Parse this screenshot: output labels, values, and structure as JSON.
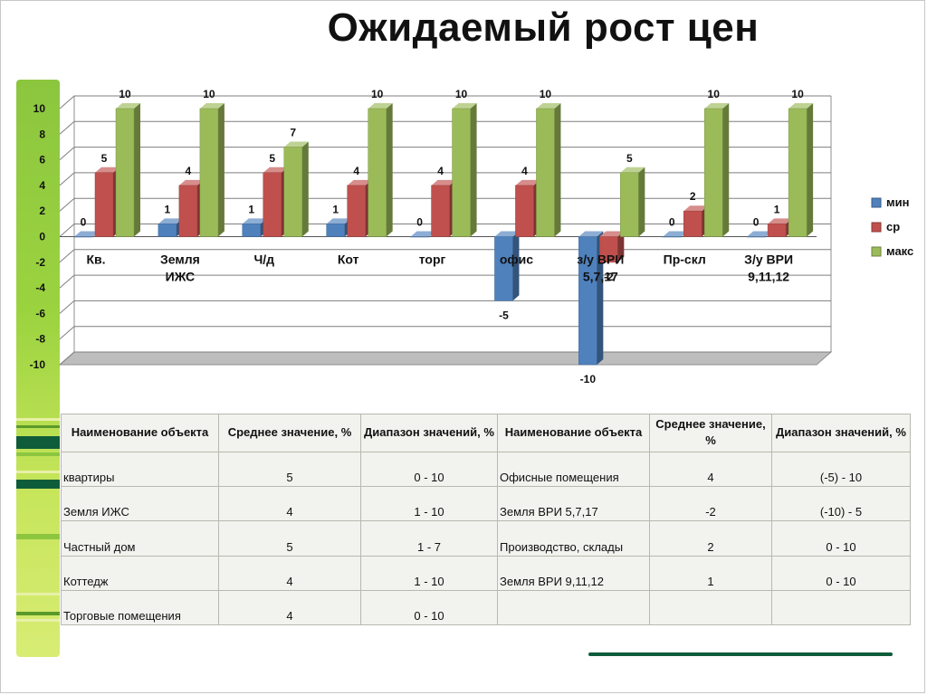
{
  "title": "Ожидаемый рост цен",
  "chart_data": {
    "type": "bar",
    "categories": [
      "Кв.",
      "Земля ИЖС",
      "Ч/д",
      "Кот",
      "торг",
      "офис",
      "з/у ВРИ 5,7,17",
      "Пр-скл",
      "З/у ВРИ 9,11,12"
    ],
    "series": [
      {
        "name": "мин",
        "color": "#4f81bd",
        "values": [
          0,
          1,
          1,
          1,
          0,
          -5,
          -10,
          0,
          0
        ]
      },
      {
        "name": "ср",
        "color": "#c0504d",
        "values": [
          5,
          4,
          5,
          4,
          4,
          4,
          -2,
          2,
          1
        ]
      },
      {
        "name": "макс",
        "color": "#9bbb59",
        "values": [
          10,
          10,
          7,
          10,
          10,
          10,
          5,
          10,
          10
        ]
      }
    ],
    "ylim": [
      -10,
      10
    ],
    "yticks": [
      10,
      8,
      6,
      4,
      2,
      0,
      -2,
      -4,
      -6,
      -8,
      -10
    ],
    "grid": true,
    "legend": "right"
  },
  "table": {
    "headers": [
      "Наименование объекта",
      "Среднее значение, %",
      "Диапазон значений, %",
      "Наименование объекта",
      "Среднее значение, %",
      "Диапазон значений, %"
    ],
    "rows": [
      [
        "квартиры",
        "5",
        "0 - 10",
        "Офисные помещения",
        "4",
        "(-5) - 10"
      ],
      [
        "Земля ИЖС",
        "4",
        "1 - 10",
        "Земля ВРИ 5,7,17",
        "-2",
        "(-10) - 5"
      ],
      [
        "Частный дом",
        "5",
        "1 - 7",
        "Производство, склады",
        "2",
        "0 - 10"
      ],
      [
        "Коттедж",
        "4",
        "1 - 10",
        "Земля ВРИ 9,11,12",
        "1",
        "0 - 10"
      ],
      [
        "Торговые помещения",
        "4",
        "0 - 10",
        "",
        "",
        ""
      ]
    ]
  }
}
